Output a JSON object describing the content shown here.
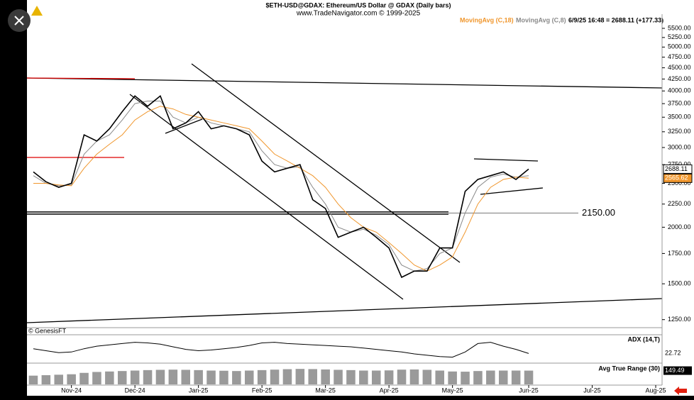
{
  "chart_data": [
    {
      "type": "line",
      "title": "$ETH-USD@GDAX:  Ethereum/US Dollar @ GDAX  (Daily bars)",
      "subtitle": "www.TradeNavigator.com © 1999-2025",
      "info": "6/9/25 16:48 = 2688.11 (+177.33)",
      "credit": "© GenesisFT",
      "log": true,
      "categories": [
        null,
        null,
        null,
        "Nov-24",
        null,
        null,
        null,
        null,
        "Dec-24",
        null,
        null,
        null,
        null,
        "Jan-25",
        null,
        null,
        null,
        null,
        "Feb-25",
        null,
        null,
        null,
        null,
        "Mar-25",
        null,
        null,
        null,
        null,
        "Apr-25",
        null,
        null,
        null,
        null,
        "May-25",
        null,
        null,
        null,
        null,
        null,
        "Jun-25",
        null,
        null,
        null,
        null,
        "Jul-25",
        null,
        null,
        null,
        null,
        "Aug-25"
      ],
      "series": [
        {
          "name": null,
          "color": "#000000",
          "values": [
            2650,
            2520,
            2450,
            2500,
            3200,
            3100,
            3300,
            3600,
            3900,
            3700,
            3900,
            3300,
            3400,
            3600,
            3300,
            3350,
            3300,
            3200,
            2800,
            2650,
            2700,
            2750,
            2300,
            2200,
            1900,
            1950,
            2000,
            1900,
            1800,
            1550,
            1600,
            1600,
            1800,
            1800,
            2400,
            2550,
            2600,
            2650,
            2550,
            2688.11,
            null,
            null,
            null,
            null,
            null,
            null,
            null,
            null,
            null,
            null
          ]
        },
        {
          "name": "MovingAvg (C,18)",
          "color": "#f0962c",
          "values": [
            2500,
            2500,
            2480,
            2470,
            2700,
            2900,
            3050,
            3200,
            3450,
            3600,
            3700,
            3650,
            3550,
            3500,
            3450,
            3400,
            3350,
            3300,
            3100,
            2900,
            2800,
            2700,
            2600,
            2450,
            2250,
            2100,
            2000,
            1950,
            1850,
            1750,
            1650,
            1600,
            1650,
            1720,
            1950,
            2250,
            2450,
            2550,
            2580,
            2565.62,
            null,
            null,
            null,
            null,
            null,
            null,
            null,
            null,
            null,
            null
          ]
        },
        {
          "name": "MovingAvg (C,8)",
          "color": "#8a8a8a",
          "values": [
            2600,
            2500,
            2470,
            2480,
            2900,
            3100,
            3200,
            3450,
            3750,
            3800,
            3800,
            3500,
            3400,
            3500,
            3400,
            3350,
            3300,
            3250,
            2950,
            2750,
            2700,
            2720,
            2450,
            2250,
            2000,
            1950,
            1980,
            1920,
            1830,
            1650,
            1600,
            1620,
            1750,
            1800,
            2150,
            2450,
            2580,
            2620,
            2580,
            2600,
            null,
            null,
            null,
            null,
            null,
            null,
            null,
            null,
            null,
            null
          ]
        }
      ],
      "hline": {
        "value": 2150,
        "label": "2150.00"
      },
      "ylim": [
        1200,
        5660
      ],
      "yticks": [
        {
          "value": 5500,
          "label": "5500.00"
        },
        {
          "value": 5250,
          "label": "5250.00"
        },
        {
          "value": 5000,
          "label": "5000.00"
        },
        {
          "value": 4750,
          "label": "4750.00"
        },
        {
          "value": 4500,
          "label": "4500.00"
        },
        {
          "value": 4250,
          "label": "4250.00"
        },
        {
          "value": 4000,
          "label": "4000.00"
        },
        {
          "value": 3750,
          "label": "3750.00"
        },
        {
          "value": 3500,
          "label": "3500.00"
        },
        {
          "value": 3250,
          "label": "3250.00"
        },
        {
          "value": 3000,
          "label": "3000.00"
        },
        {
          "value": 2750,
          "label": "2750.00"
        },
        {
          "value": 2500,
          "label": "2500.00"
        },
        {
          "value": 2250,
          "label": "2250.00"
        },
        {
          "value": 2000,
          "label": "2000.00"
        },
        {
          "value": 1750,
          "label": "1750.00"
        },
        {
          "value": 1500,
          "label": "1500.00"
        },
        {
          "value": 1250,
          "label": "1250.00"
        }
      ]
    },
    {
      "type": "line",
      "title": "ADX (14,T)",
      "color": "#000000",
      "ylim": [
        10,
        45
      ],
      "values": [
        30,
        27,
        24,
        25,
        30,
        34,
        36,
        38,
        40,
        39,
        37,
        33,
        29,
        27,
        28,
        30,
        32,
        35,
        39,
        40,
        38,
        37,
        36,
        35,
        34,
        33,
        31,
        29,
        27,
        25,
        22,
        20,
        18,
        17,
        25,
        38,
        40,
        34,
        29,
        22.72,
        null,
        null,
        null,
        null,
        null,
        null,
        null,
        null,
        null,
        null
      ]
    },
    {
      "type": "bar",
      "title": "Avg True Range (30)",
      "color": "#9a9a9a",
      "ylim": [
        0,
        200
      ],
      "values": [
        95,
        100,
        105,
        110,
        125,
        135,
        140,
        145,
        150,
        155,
        158,
        160,
        158,
        155,
        150,
        148,
        145,
        150,
        155,
        160,
        165,
        168,
        166,
        162,
        158,
        155,
        150,
        150,
        152,
        160,
        162,
        158,
        150,
        140,
        138,
        145,
        150,
        150,
        150,
        149.49,
        null,
        null,
        null,
        null,
        null,
        null,
        null,
        null,
        null,
        null
      ]
    }
  ]
}
